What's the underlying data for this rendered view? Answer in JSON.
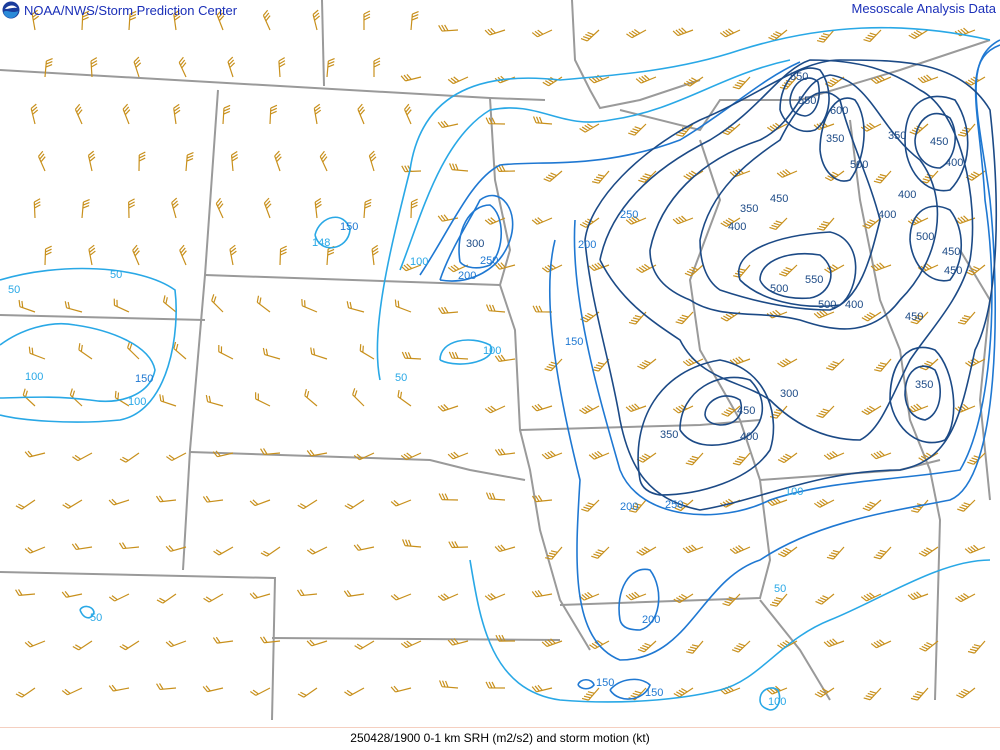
{
  "header": {
    "agency": "NOAA/NWS/Storm Prediction Center",
    "product": "Mesoscale Analysis Data"
  },
  "footer": {
    "caption": "250428/1900 0-1 km SRH (m2/s2) and storm motion (kt)"
  },
  "icons": {
    "logo": "noaa-logo-icon",
    "barb": "wind-barb-icon"
  },
  "colors": {
    "contour_low": "#29a8e6",
    "contour_mid": "#1f78d2",
    "contour_high": "#1c4a86",
    "barbs": "#c8901c",
    "borders": "#999999",
    "title": "#1a2fb8"
  },
  "contour_labels": [
    "50",
    "100",
    "150",
    "100",
    "50",
    "148",
    "150",
    "100",
    "200",
    "250",
    "300",
    "50",
    "100",
    "150",
    "200",
    "250",
    "300",
    "350",
    "400",
    "450",
    "200",
    "250",
    "350",
    "400",
    "450",
    "500",
    "550",
    "500",
    "400",
    "350",
    "400",
    "500",
    "550",
    "600",
    "550",
    "350",
    "450",
    "400",
    "500",
    "450",
    "450",
    "400",
    "450",
    "350",
    "100",
    "50",
    "200",
    "150",
    "150",
    "100",
    "50"
  ]
}
